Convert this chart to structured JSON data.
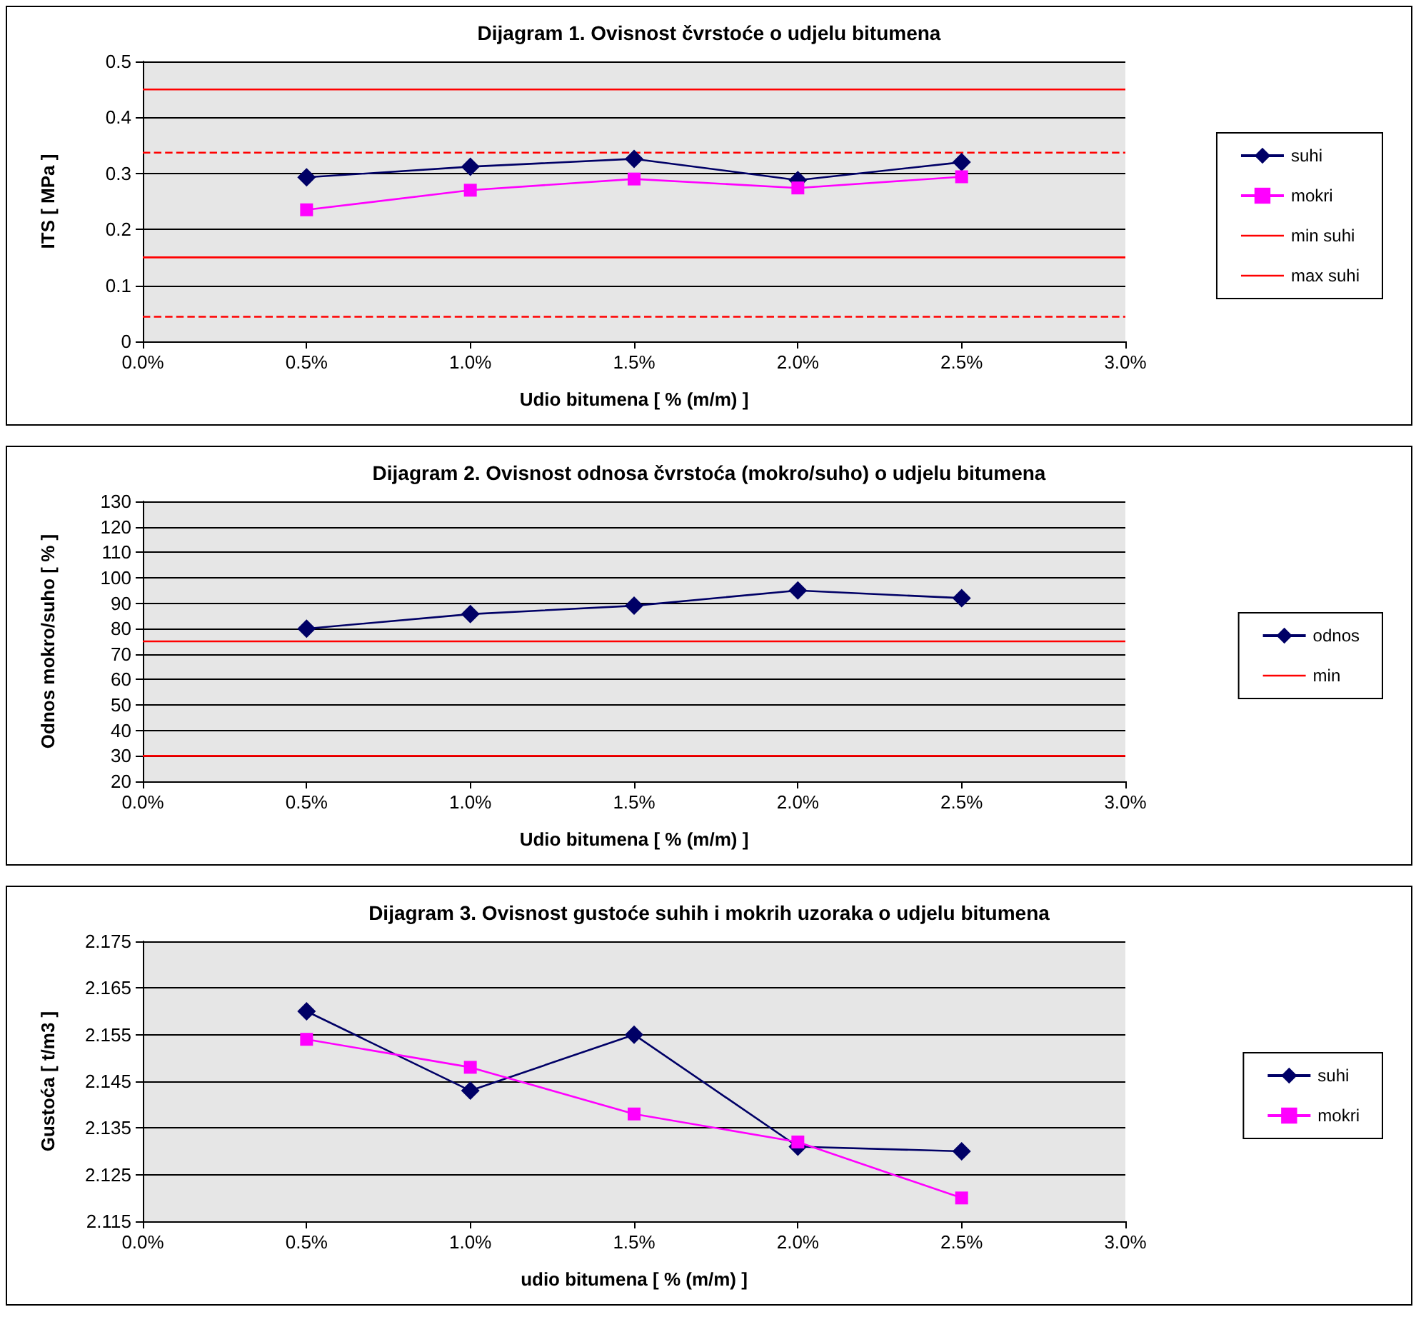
{
  "chart_data": [
    {
      "type": "line",
      "title": "Dijagram 1. Ovisnost čvrstoće o udjelu bitumena",
      "xlabel": "Udio bitumena [ % (m/m) ]",
      "ylabel": "ITS [ MPa ]",
      "xlim": [
        0,
        3
      ],
      "xticks": [
        {
          "value": 0,
          "label": "0.0%"
        },
        {
          "value": 0.5,
          "label": "0.5%"
        },
        {
          "value": 1,
          "label": "1.0%"
        },
        {
          "value": 1.5,
          "label": "1.5%"
        },
        {
          "value": 2,
          "label": "2.0%"
        },
        {
          "value": 2.5,
          "label": "2.5%"
        },
        {
          "value": 3,
          "label": "3.0%"
        }
      ],
      "ylim": [
        0,
        0.5
      ],
      "yticks": [
        0,
        0.1,
        0.2,
        0.3,
        0.4,
        0.5
      ],
      "grid": "y",
      "legend": "right",
      "x": [
        0.5,
        1,
        1.5,
        2,
        2.5
      ],
      "series": [
        {
          "name": "suhi",
          "color": "#000066",
          "marker": "diamond",
          "values": [
            0.293,
            0.312,
            0.326,
            0.288,
            0.32
          ]
        },
        {
          "name": "mokri",
          "color": "#ff00ff",
          "marker": "square",
          "values": [
            0.235,
            0.27,
            0.29,
            0.274,
            0.294
          ]
        }
      ],
      "ref_lines": [
        {
          "axis": "y",
          "value": 0.15,
          "label": "min suhi",
          "color": "#ff0000",
          "line_style": "solid"
        },
        {
          "axis": "y",
          "value": 0.45,
          "label": "max suhi",
          "color": "#ff0000",
          "line_style": "solid"
        },
        {
          "axis": "y",
          "value": 0.337,
          "color": "#ff0000",
          "line_style": "dashed"
        },
        {
          "axis": "y",
          "value": 0.044,
          "color": "#ff0000",
          "line_style": "dashed"
        }
      ]
    },
    {
      "type": "line",
      "title": "Dijagram 2. Ovisnost odnosa čvrstoća (mokro/suho) o udjelu bitumena",
      "xlabel": "Udio bitumena [ % (m/m) ]",
      "ylabel": "Odnos mokro/suho [ % ]",
      "xlim": [
        0,
        3
      ],
      "xticks": [
        {
          "value": 0,
          "label": "0.0%"
        },
        {
          "value": 0.5,
          "label": "0.5%"
        },
        {
          "value": 1,
          "label": "1.0%"
        },
        {
          "value": 1.5,
          "label": "1.5%"
        },
        {
          "value": 2,
          "label": "2.0%"
        },
        {
          "value": 2.5,
          "label": "2.5%"
        },
        {
          "value": 3,
          "label": "3.0%"
        }
      ],
      "ylim": [
        20,
        130
      ],
      "yticks": [
        20,
        30,
        40,
        50,
        60,
        70,
        80,
        90,
        100,
        110,
        120,
        130
      ],
      "grid": "y",
      "legend": "right",
      "x": [
        0.5,
        1,
        1.5,
        2,
        2.5
      ],
      "series": [
        {
          "name": "odnos",
          "color": "#000066",
          "marker": "diamond",
          "values": [
            80,
            85.7,
            89,
            95,
            92
          ]
        }
      ],
      "ref_lines": [
        {
          "axis": "y",
          "value": 75,
          "label": "min",
          "color": "#ff0000",
          "line_style": "solid"
        },
        {
          "axis": "y",
          "value": 30,
          "color": "#ff0000",
          "line_style": "solid"
        }
      ]
    },
    {
      "type": "line",
      "title": "Dijagram 3. Ovisnost gustoće suhih i mokrih uzoraka o udjelu bitumena",
      "xlabel": "udio bitumena [ % (m/m) ]",
      "ylabel": "Gustoća [ t/m3 ]",
      "xlim": [
        0,
        3
      ],
      "xticks": [
        {
          "value": 0,
          "label": "0.0%"
        },
        {
          "value": 0.5,
          "label": "0.5%"
        },
        {
          "value": 1,
          "label": "1.0%"
        },
        {
          "value": 1.5,
          "label": "1.5%"
        },
        {
          "value": 2,
          "label": "2.0%"
        },
        {
          "value": 2.5,
          "label": "2.5%"
        },
        {
          "value": 3,
          "label": "3.0%"
        }
      ],
      "ylim": [
        2.115,
        2.175
      ],
      "yticks": [
        2.115,
        2.125,
        2.135,
        2.145,
        2.155,
        2.165,
        2.175
      ],
      "grid": "y",
      "legend": "right",
      "x": [
        0.5,
        1,
        1.5,
        2,
        2.5
      ],
      "series": [
        {
          "name": "suhi",
          "color": "#000066",
          "marker": "diamond",
          "values": [
            2.16,
            2.143,
            2.155,
            2.131,
            2.13
          ]
        },
        {
          "name": "mokri",
          "color": "#ff00ff",
          "marker": "square",
          "values": [
            2.154,
            2.148,
            2.138,
            2.132,
            2.12
          ]
        }
      ]
    }
  ]
}
